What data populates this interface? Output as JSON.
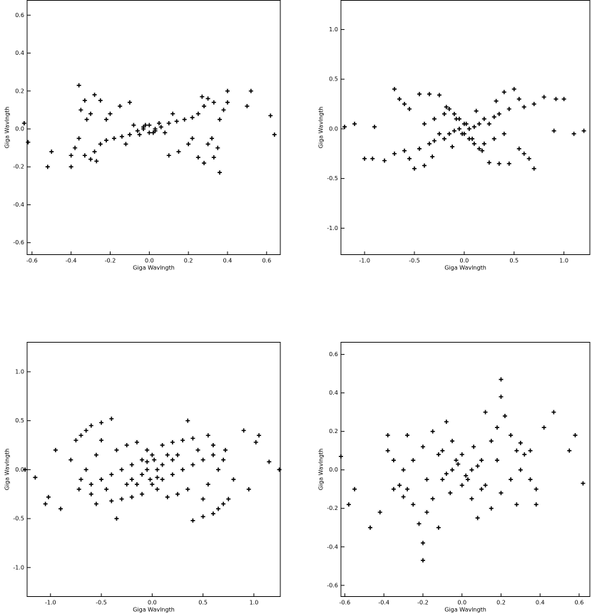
{
  "chart_data": [
    {
      "type": "scatter",
      "xlabel": "Giga Wavlngth",
      "ylabel": "Giga Wavlngth",
      "color": "#000000",
      "xlim": [
        -0.625,
        0.67
      ],
      "ylim": [
        -0.665,
        0.68
      ],
      "xticks": [
        -0.6,
        -0.4,
        -0.2,
        {
          "value": 0,
          "label": "0.0"
        },
        0.2,
        0.4,
        0.6
      ],
      "yticks": [
        -0.6,
        -0.4,
        -0.2,
        {
          "value": 0,
          "label": "0.0"
        },
        0.2,
        0.4,
        0.6
      ],
      "x": [
        0.62,
        0.52,
        0.5,
        0.4,
        0.38,
        0.36,
        0.33,
        0.3,
        0.28,
        0.25,
        0.22,
        0.18,
        0.14,
        0.1,
        0.06,
        0.03,
        0.35,
        0.33,
        0.3,
        0.28,
        0.36,
        0.25,
        0.15,
        0.1,
        0.22,
        0.05,
        0,
        -0.03,
        0.08,
        0.64,
        0.4,
        0.2,
        0.12,
        0.32,
        0.02,
        0.27,
        -0.62,
        -0.52,
        -0.5,
        -0.4,
        -0.38,
        -0.36,
        -0.33,
        -0.3,
        -0.28,
        -0.25,
        -0.22,
        -0.18,
        -0.14,
        -0.1,
        -0.06,
        -0.03,
        -0.35,
        -0.33,
        -0.3,
        -0.28,
        -0.36,
        -0.25,
        -0.15,
        -0.1,
        -0.22,
        -0.05,
        0,
        0.03,
        -0.08,
        -0.64,
        -0.4,
        -0.2,
        -0.12,
        -0.32,
        -0.02,
        -0.27
      ],
      "values": [
        0.07,
        0.2,
        0.12,
        0.2,
        0.1,
        0.05,
        0.14,
        0.16,
        0.12,
        0.08,
        0.06,
        0.05,
        0.04,
        0.03,
        0.01,
        0,
        -0.1,
        -0.15,
        -0.08,
        -0.18,
        -0.23,
        -0.15,
        -0.12,
        -0.14,
        -0.05,
        0.03,
        0.02,
        0.01,
        -0.02,
        -0.03,
        0.14,
        -0.08,
        0.08,
        -0.05,
        -0.02,
        0.17,
        -0.07,
        -0.2,
        -0.12,
        -0.2,
        -0.1,
        -0.05,
        -0.14,
        -0.16,
        -0.12,
        -0.08,
        -0.06,
        -0.05,
        -0.04,
        -0.03,
        -0.01,
        0,
        0.1,
        0.15,
        0.08,
        0.18,
        0.23,
        0.15,
        0.12,
        0.14,
        0.05,
        -0.03,
        -0.02,
        -0.01,
        0.02,
        0.03,
        -0.14,
        0.08,
        -0.08,
        0.05,
        0.02,
        -0.17
      ]
    },
    {
      "type": "scatter",
      "xlabel": "Giga Wavlngth",
      "ylabel": "Giga Wavlngth",
      "color": "#000000",
      "xlim": [
        -1.237,
        1.26
      ],
      "ylim": [
        -1.27,
        1.297
      ],
      "xticks": [
        {
          "value": -1,
          "label": "-1.0"
        },
        -0.5,
        {
          "value": 0,
          "label": "0.0"
        },
        0.5,
        {
          "value": 1,
          "label": "1.0"
        }
      ],
      "yticks": [
        {
          "value": -1,
          "label": "-1.0"
        },
        -0.5,
        {
          "value": 0,
          "label": "0.0"
        },
        0.5,
        {
          "value": 1,
          "label": "1.0"
        }
      ],
      "x": [
        1.2,
        1.1,
        1.0,
        0.92,
        0.8,
        0.7,
        0.6,
        0.55,
        0.65,
        0.45,
        0.35,
        0.25,
        0.5,
        0.4,
        0.55,
        0.6,
        0.45,
        0.35,
        0.3,
        0.2,
        0.15,
        0.1,
        0.05,
        0.02,
        -0.05,
        -0.1,
        0.08,
        0.2,
        0.3,
        0,
        0.7,
        0.25,
        0.12,
        0.9,
        -0.15,
        0.4,
        0.32,
        0.18,
        -1.2,
        -1.1,
        -1.0,
        -0.92,
        -0.8,
        -0.7,
        -0.6,
        -0.55,
        -0.65,
        -0.45,
        -0.35,
        -0.25,
        -0.5,
        -0.4,
        -0.55,
        -0.6,
        -0.45,
        -0.35,
        -0.3,
        -0.2,
        -0.15,
        -0.1,
        -0.05,
        -0.02,
        0.05,
        0.1,
        -0.08,
        -0.2,
        -0.3,
        0,
        -0.7,
        -0.25,
        -0.12,
        -0.9,
        0.15,
        -0.4,
        -0.32,
        -0.18
      ],
      "values": [
        -0.02,
        -0.05,
        0.3,
        0.3,
        0.32,
        -0.4,
        -0.25,
        -0.2,
        -0.3,
        -0.35,
        -0.35,
        -0.34,
        0.4,
        0.37,
        0.3,
        0.22,
        0.2,
        0.15,
        0.12,
        0.1,
        0.05,
        0.02,
        0,
        0.05,
        0.1,
        0.15,
        -0.1,
        -0.15,
        -0.1,
        -0.05,
        0.25,
        0.05,
        0.18,
        -0.02,
        0.2,
        -0.05,
        0.28,
        -0.22,
        0.02,
        0.05,
        -0.3,
        -0.3,
        -0.32,
        0.4,
        0.25,
        0.2,
        0.3,
        0.35,
        0.35,
        0.34,
        -0.4,
        -0.37,
        -0.3,
        -0.22,
        -0.2,
        -0.15,
        -0.12,
        -0.1,
        -0.05,
        -0.02,
        0,
        -0.05,
        -0.1,
        -0.15,
        0.1,
        0.15,
        0.1,
        0.05,
        -0.25,
        -0.05,
        -0.18,
        0.02,
        -0.2,
        0.05,
        -0.28,
        0.22
      ]
    },
    {
      "type": "scatter",
      "xlabel": "Giga Wavlngth",
      "ylabel": "Giga Wavlngth",
      "color": "#000000",
      "xlim": [
        -1.23,
        1.26
      ],
      "ylim": [
        -1.3,
        1.305
      ],
      "xticks": [
        {
          "value": -1,
          "label": "-1.0"
        },
        -0.5,
        {
          "value": 0,
          "label": "0.0"
        },
        0.5,
        {
          "value": 1,
          "label": "1.0"
        }
      ],
      "yticks": [
        {
          "value": -1,
          "label": "-1.0"
        },
        -0.5,
        {
          "value": 0,
          "label": "0.0"
        },
        0.5,
        {
          "value": 1,
          "label": "1.0"
        }
      ],
      "x": [
        1.25,
        1.15,
        1.05,
        1.02,
        0.95,
        0.9,
        0.75,
        0.7,
        0.65,
        0.6,
        0.5,
        0.4,
        0.72,
        0.7,
        0.6,
        0.55,
        0.4,
        0.3,
        0.2,
        0.1,
        0.6,
        0.5,
        0.4,
        0.3,
        0.2,
        0.1,
        0,
        0.35,
        0.25,
        0.15,
        0.05,
        0.2,
        0.1,
        0.05,
        0.15,
        0.25,
        0.45,
        0.55,
        0.5,
        0.35,
        0.8,
        0.65,
        -0.05,
        0.02,
        -1.25,
        -1.15,
        -1.05,
        -1.02,
        -0.95,
        -0.9,
        -0.75,
        -0.7,
        -0.65,
        -0.6,
        -0.5,
        -0.4,
        -0.72,
        -0.7,
        -0.6,
        -0.55,
        -0.4,
        -0.3,
        -0.2,
        -0.1,
        -0.6,
        -0.5,
        -0.4,
        -0.3,
        -0.2,
        -0.1,
        0,
        -0.35,
        -0.25,
        -0.15,
        -0.05,
        -0.2,
        -0.1,
        -0.05,
        -0.15,
        -0.25,
        -0.45,
        -0.55,
        -0.5,
        -0.35,
        -0.8,
        -0.65,
        0.05,
        -0.02
      ],
      "values": [
        0,
        0.08,
        0.35,
        0.28,
        -0.2,
        0.4,
        -0.3,
        -0.35,
        -0.4,
        -0.45,
        -0.48,
        -0.52,
        0.2,
        0.1,
        0.25,
        0.35,
        0.32,
        0.3,
        0.28,
        0.25,
        0.15,
        0.1,
        0.05,
        0,
        -0.05,
        -0.1,
        -0.15,
        -0.2,
        -0.25,
        -0.28,
        -0.2,
        0.1,
        0.05,
        0,
        0.15,
        0.15,
        0.2,
        -0.15,
        -0.3,
        0.5,
        -0.1,
        0,
        0.08,
        0.1,
        0,
        -0.08,
        -0.35,
        -0.28,
        0.2,
        -0.4,
        0.3,
        0.35,
        0.4,
        0.45,
        0.48,
        0.52,
        -0.2,
        -0.1,
        -0.25,
        -0.35,
        -0.32,
        -0.3,
        -0.28,
        -0.25,
        -0.15,
        -0.1,
        -0.05,
        0,
        0.05,
        0.1,
        0.15,
        0.2,
        0.25,
        0.28,
        0.2,
        -0.1,
        -0.05,
        0,
        -0.15,
        -0.15,
        -0.2,
        0.15,
        0.3,
        -0.5,
        0.1,
        0,
        -0.08,
        -0.1
      ]
    },
    {
      "type": "scatter",
      "xlabel": "Giga Wavlngth",
      "ylabel": "Giga Wavlngth",
      "color": "#000000",
      "xlim": [
        -0.62,
        0.655
      ],
      "ylim": [
        -0.66,
        0.665
      ],
      "xticks": [
        -0.6,
        -0.4,
        -0.2,
        {
          "value": 0,
          "label": "0.0"
        },
        0.2,
        0.4,
        0.6
      ],
      "yticks": [
        -0.6,
        -0.4,
        -0.2,
        {
          "value": 0,
          "label": "0.0"
        },
        0.2,
        0.4,
        0.6
      ],
      "x": [
        0.62,
        0.58,
        0.55,
        0.47,
        0.42,
        0.38,
        0.38,
        0.35,
        0.32,
        0.3,
        0.28,
        0.25,
        0.22,
        0.2,
        0.2,
        0.18,
        0.15,
        0.12,
        0.1,
        0.08,
        0.05,
        0.02,
        0,
        0.1,
        0.15,
        0.2,
        0.25,
        0.28,
        0.05,
        0.08,
        0.12,
        0.06,
        0.3,
        -0.03,
        0.18,
        0.35,
        -0.62,
        -0.58,
        -0.55,
        -0.47,
        -0.42,
        -0.38,
        -0.38,
        -0.35,
        -0.32,
        -0.3,
        -0.28,
        -0.25,
        -0.22,
        -0.2,
        -0.2,
        -0.18,
        -0.15,
        -0.12,
        -0.1,
        -0.08,
        -0.05,
        -0.02,
        0,
        -0.1,
        -0.15,
        -0.2,
        -0.25,
        -0.28,
        -0.05,
        -0.08,
        -0.12,
        -0.06,
        -0.3,
        0.03,
        -0.18,
        -0.35
      ],
      "values": [
        -0.07,
        0.18,
        0.1,
        0.3,
        0.22,
        -0.18,
        -0.1,
        -0.05,
        0.08,
        0.14,
        0.1,
        0.18,
        0.28,
        0.47,
        0.38,
        0.22,
        0.15,
        0.3,
        0.05,
        0.02,
        0,
        -0.03,
        0.08,
        -0.1,
        -0.2,
        -0.12,
        -0.05,
        -0.18,
        -0.15,
        -0.25,
        -0.08,
        0.12,
        0,
        0.05,
        0.05,
        0.1,
        0.07,
        -0.18,
        -0.1,
        -0.3,
        -0.22,
        0.18,
        0.1,
        0.05,
        -0.08,
        -0.14,
        -0.1,
        -0.18,
        -0.28,
        -0.47,
        -0.38,
        -0.22,
        -0.15,
        -0.3,
        -0.05,
        -0.02,
        0,
        0.03,
        -0.08,
        0.1,
        0.2,
        0.12,
        0.05,
        0.18,
        0.15,
        0.25,
        0.08,
        -0.12,
        0,
        -0.05,
        -0.05,
        -0.1
      ]
    }
  ]
}
